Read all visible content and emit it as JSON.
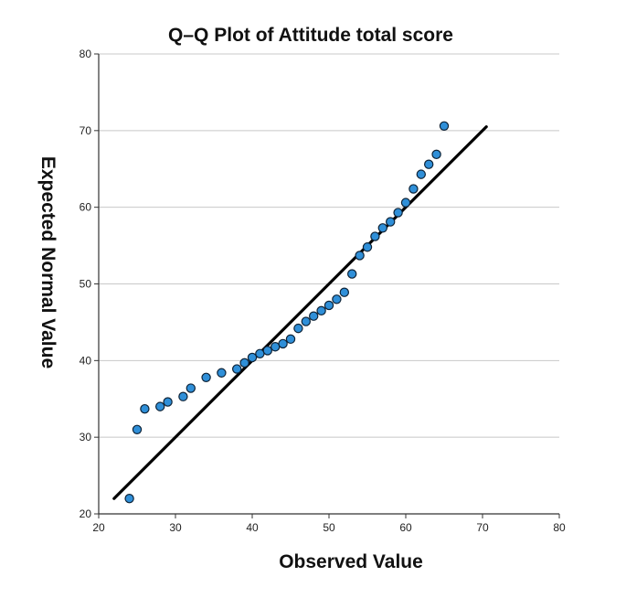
{
  "chart_data": {
    "type": "scatter",
    "title": "Q–Q Plot of Attitude total score",
    "xlabel": "Observed Value",
    "ylabel": "Expected Normal Value",
    "xlim": [
      20,
      80
    ],
    "ylim": [
      20,
      80
    ],
    "x_ticks": [
      "20",
      "30",
      "40",
      "50",
      "60",
      "70",
      "80"
    ],
    "y_ticks": [
      "20",
      "30",
      "40",
      "50",
      "60",
      "70",
      "80"
    ],
    "grid": "horizontal",
    "legend": "none",
    "marker_color": "#2f8fd8",
    "marker_edge_color": "#0d2236",
    "reference_line_color": "#000000",
    "reference_line": {
      "x": [
        22,
        70.5
      ],
      "y": [
        22,
        70.5
      ]
    },
    "points": {
      "x": [
        24,
        25,
        26,
        28,
        29,
        31,
        32,
        34,
        36,
        38,
        39,
        40,
        41,
        42,
        43,
        44,
        45,
        46,
        47,
        48,
        49,
        50,
        51,
        52,
        53,
        54,
        55,
        56,
        57,
        58,
        59,
        60,
        61,
        62,
        63,
        64,
        65
      ],
      "y": [
        22.0,
        31.0,
        33.7,
        34.0,
        34.6,
        35.3,
        36.4,
        37.8,
        38.4,
        38.9,
        39.7,
        40.4,
        40.9,
        41.3,
        41.8,
        42.2,
        42.8,
        44.2,
        45.1,
        45.8,
        46.5,
        47.2,
        48.0,
        48.9,
        51.3,
        53.7,
        54.8,
        56.2,
        57.3,
        58.1,
        59.3,
        60.6,
        62.4,
        64.3,
        65.6,
        66.9,
        70.6
      ]
    }
  }
}
